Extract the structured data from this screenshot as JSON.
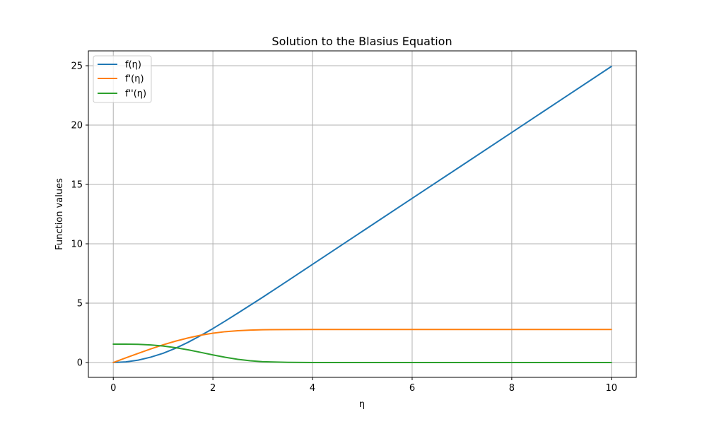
{
  "chart_data": {
    "type": "line",
    "title": "Solution to the Blasius Equation",
    "xlabel": "η",
    "ylabel": "Function values",
    "xlim": [
      -0.5,
      10.5
    ],
    "ylim": [
      -1.25,
      26.25
    ],
    "xticks": [
      0,
      2,
      4,
      6,
      8,
      10
    ],
    "yticks": [
      0,
      5,
      10,
      15,
      20,
      25
    ],
    "grid": true,
    "legend_position": "upper-left",
    "series": [
      {
        "name": "f(η)",
        "color": "#1f77b4",
        "x": [
          0,
          0.25,
          0.5,
          0.75,
          1,
          1.25,
          1.5,
          1.75,
          2,
          2.25,
          2.5,
          2.75,
          3,
          3.5,
          4,
          5,
          6,
          7,
          8,
          9,
          10
        ],
        "y": [
          0,
          0.05,
          0.2,
          0.45,
          0.78,
          1.2,
          1.7,
          2.26,
          2.86,
          3.5,
          4.16,
          4.83,
          5.5,
          6.88,
          8.27,
          11.05,
          13.83,
          16.6,
          19.38,
          22.16,
          24.94
        ]
      },
      {
        "name": "f'(η)",
        "color": "#ff7f0e",
        "x": [
          0,
          0.25,
          0.5,
          0.75,
          1,
          1.25,
          1.5,
          1.75,
          2,
          2.25,
          2.5,
          2.75,
          3,
          3.5,
          4,
          5,
          6,
          7,
          8,
          9,
          10
        ],
        "y": [
          0,
          0.39,
          0.77,
          1.14,
          1.49,
          1.8,
          2.07,
          2.3,
          2.47,
          2.6,
          2.68,
          2.73,
          2.76,
          2.776,
          2.78,
          2.78,
          2.78,
          2.78,
          2.78,
          2.78,
          2.78
        ]
      },
      {
        "name": "f''(η)",
        "color": "#2ca02c",
        "x": [
          0,
          0.25,
          0.5,
          0.75,
          1,
          1.25,
          1.5,
          1.75,
          2,
          2.25,
          2.5,
          2.75,
          3,
          3.5,
          4,
          5,
          6,
          7,
          8,
          9,
          10
        ],
        "y": [
          1.55,
          1.55,
          1.53,
          1.48,
          1.39,
          1.25,
          1.07,
          0.86,
          0.64,
          0.44,
          0.27,
          0.15,
          0.07,
          0.015,
          0.003,
          0,
          0,
          0,
          0,
          0,
          0
        ]
      }
    ]
  }
}
